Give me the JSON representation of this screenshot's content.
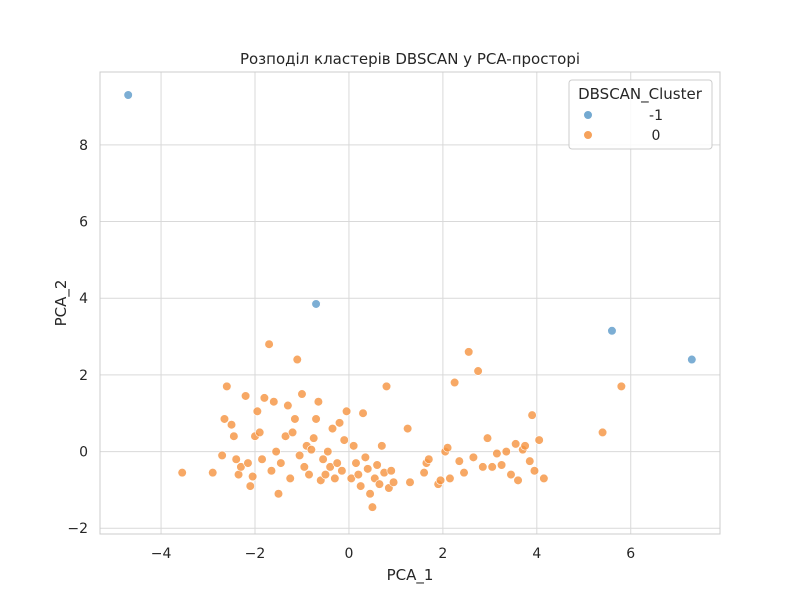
{
  "chart_data": {
    "type": "scatter",
    "title": "Розподіл кластерів DBSCAN у PCA-просторі",
    "xlabel": "PCA_1",
    "ylabel": "PCA_2",
    "xlim": [
      -5.3,
      7.9
    ],
    "ylim": [
      -2.15,
      9.9
    ],
    "xticks": [
      -4,
      -2,
      0,
      2,
      4,
      6
    ],
    "yticks": [
      -2,
      0,
      2,
      4,
      6,
      8
    ],
    "grid": true,
    "legend": {
      "title": "DBSCAN_Cluster",
      "placement": "top-right"
    },
    "series": [
      {
        "name": "-1",
        "color": "#5b9ac9",
        "points": [
          [
            -4.7,
            9.3
          ],
          [
            -0.7,
            3.85
          ],
          [
            5.6,
            3.15
          ],
          [
            7.3,
            2.4
          ]
        ]
      },
      {
        "name": "0",
        "color": "#f5923e",
        "points": [
          [
            -3.55,
            -0.55
          ],
          [
            -2.9,
            -0.55
          ],
          [
            -2.7,
            -0.1
          ],
          [
            -2.65,
            0.85
          ],
          [
            -2.6,
            1.7
          ],
          [
            -2.5,
            0.7
          ],
          [
            -2.45,
            0.4
          ],
          [
            -2.4,
            -0.2
          ],
          [
            -2.35,
            -0.6
          ],
          [
            -2.3,
            -0.4
          ],
          [
            -2.2,
            1.45
          ],
          [
            -2.15,
            -0.3
          ],
          [
            -2.1,
            -0.9
          ],
          [
            -2.05,
            -0.65
          ],
          [
            -2.0,
            0.4
          ],
          [
            -1.95,
            1.05
          ],
          [
            -1.9,
            0.5
          ],
          [
            -1.85,
            -0.2
          ],
          [
            -1.8,
            1.4
          ],
          [
            -1.7,
            2.8
          ],
          [
            -1.65,
            -0.5
          ],
          [
            -1.6,
            1.3
          ],
          [
            -1.55,
            0.0
          ],
          [
            -1.5,
            -1.1
          ],
          [
            -1.45,
            -0.3
          ],
          [
            -1.35,
            0.4
          ],
          [
            -1.3,
            1.2
          ],
          [
            -1.25,
            -0.7
          ],
          [
            -1.2,
            0.5
          ],
          [
            -1.15,
            0.85
          ],
          [
            -1.1,
            2.4
          ],
          [
            -1.05,
            -0.1
          ],
          [
            -1.0,
            1.5
          ],
          [
            -0.95,
            -0.4
          ],
          [
            -0.9,
            0.15
          ],
          [
            -0.85,
            -0.6
          ],
          [
            -0.8,
            0.05
          ],
          [
            -0.75,
            0.35
          ],
          [
            -0.7,
            0.85
          ],
          [
            -0.65,
            1.3
          ],
          [
            -0.6,
            -0.75
          ],
          [
            -0.55,
            -0.2
          ],
          [
            -0.5,
            -0.6
          ],
          [
            -0.45,
            0.0
          ],
          [
            -0.4,
            -0.4
          ],
          [
            -0.35,
            0.6
          ],
          [
            -0.3,
            -0.7
          ],
          [
            -0.25,
            -0.3
          ],
          [
            -0.2,
            0.75
          ],
          [
            -0.15,
            -0.5
          ],
          [
            -0.1,
            0.3
          ],
          [
            -0.05,
            1.05
          ],
          [
            0.05,
            -0.7
          ],
          [
            0.1,
            0.15
          ],
          [
            0.15,
            -0.3
          ],
          [
            0.2,
            -0.6
          ],
          [
            0.25,
            -0.9
          ],
          [
            0.3,
            1.0
          ],
          [
            0.35,
            -0.15
          ],
          [
            0.4,
            -0.45
          ],
          [
            0.45,
            -1.1
          ],
          [
            0.5,
            -1.45
          ],
          [
            0.55,
            -0.7
          ],
          [
            0.6,
            -0.35
          ],
          [
            0.65,
            -0.85
          ],
          [
            0.7,
            0.15
          ],
          [
            0.75,
            -0.55
          ],
          [
            0.8,
            1.7
          ],
          [
            0.85,
            -0.95
          ],
          [
            0.9,
            -0.5
          ],
          [
            0.95,
            -0.8
          ],
          [
            1.25,
            0.6
          ],
          [
            1.3,
            -0.8
          ],
          [
            1.6,
            -0.55
          ],
          [
            1.65,
            -0.3
          ],
          [
            1.7,
            -0.2
          ],
          [
            1.9,
            -0.85
          ],
          [
            1.95,
            -0.75
          ],
          [
            2.05,
            0.0
          ],
          [
            2.1,
            0.1
          ],
          [
            2.15,
            -0.7
          ],
          [
            2.25,
            1.8
          ],
          [
            2.35,
            -0.25
          ],
          [
            2.45,
            -0.55
          ],
          [
            2.55,
            2.6
          ],
          [
            2.65,
            -0.15
          ],
          [
            2.75,
            2.1
          ],
          [
            2.85,
            -0.4
          ],
          [
            2.95,
            0.35
          ],
          [
            3.05,
            -0.4
          ],
          [
            3.15,
            -0.05
          ],
          [
            3.25,
            -0.35
          ],
          [
            3.35,
            0.0
          ],
          [
            3.45,
            -0.6
          ],
          [
            3.55,
            0.2
          ],
          [
            3.6,
            -0.75
          ],
          [
            3.7,
            0.05
          ],
          [
            3.75,
            0.15
          ],
          [
            3.85,
            -0.25
          ],
          [
            3.9,
            0.95
          ],
          [
            3.95,
            -0.5
          ],
          [
            4.05,
            0.3
          ],
          [
            4.15,
            -0.7
          ],
          [
            5.4,
            0.5
          ],
          [
            5.8,
            1.7
          ]
        ]
      }
    ]
  }
}
